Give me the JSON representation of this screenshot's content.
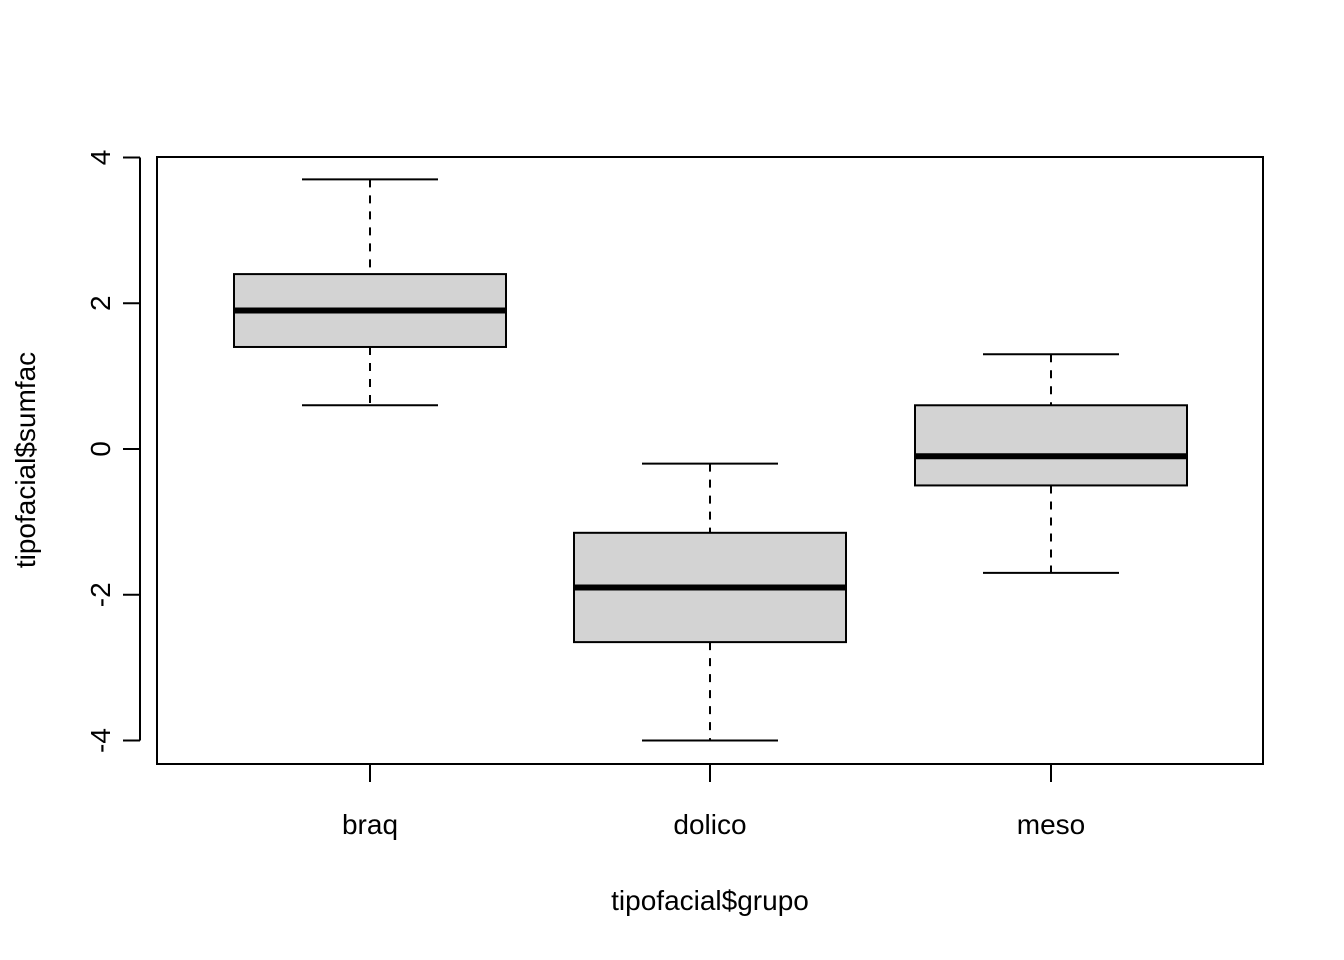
{
  "chart_data": {
    "type": "boxplot",
    "xlabel": "tipofacial$grupo",
    "ylabel": "tipofacial$sumfac",
    "categories": [
      "braq",
      "dolico",
      "meso"
    ],
    "boxes": [
      {
        "category": "braq",
        "whisker_low": 0.6,
        "q1": 1.4,
        "median": 1.9,
        "q3": 2.4,
        "whisker_high": 3.7
      },
      {
        "category": "dolico",
        "whisker_low": -4.0,
        "q1": -2.65,
        "median": -1.9,
        "q3": -1.15,
        "whisker_high": -0.2
      },
      {
        "category": "meso",
        "whisker_low": -1.7,
        "q1": -0.5,
        "median": -0.1,
        "q3": 0.6,
        "whisker_high": 1.3
      }
    ],
    "yticks": [
      "-4",
      "-2",
      "0",
      "2",
      "4"
    ],
    "ylim": [
      -4.3,
      4.0
    ],
    "grid": false,
    "box_fill": "#d3d3d3",
    "line_color": "#000000"
  }
}
